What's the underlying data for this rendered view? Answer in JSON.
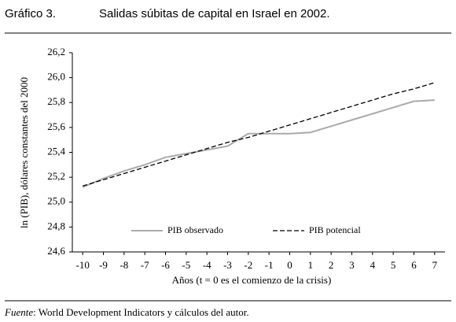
{
  "header": {
    "label": "Gráfico 3.",
    "title": "Salidas súbitas de capital en Israel en 2002."
  },
  "chart_data": {
    "type": "line",
    "x": [
      -10,
      -9,
      -8,
      -7,
      -6,
      -5,
      -4,
      -3,
      -2,
      -1,
      0,
      1,
      2,
      3,
      4,
      5,
      6,
      7
    ],
    "xlim": [
      -10.5,
      7.5
    ],
    "xticks": [
      -10,
      -9,
      -8,
      -7,
      -6,
      -5,
      -4,
      -3,
      -2,
      -1,
      0,
      1,
      2,
      3,
      4,
      5,
      6,
      7
    ],
    "ylim": [
      24.6,
      26.2
    ],
    "yticks": [
      {
        "value": 24.6,
        "label": "24,6"
      },
      {
        "value": 24.8,
        "label": "24,8"
      },
      {
        "value": 25.0,
        "label": "25,0"
      },
      {
        "value": 25.2,
        "label": "25,2"
      },
      {
        "value": 25.4,
        "label": "25,4"
      },
      {
        "value": 25.6,
        "label": "25,6"
      },
      {
        "value": 25.8,
        "label": "25,8"
      },
      {
        "value": 26.0,
        "label": "26,0"
      },
      {
        "value": 26.2,
        "label": "26,2"
      }
    ],
    "x_label": "Años  (t = 0 es el comienzo de la crisis)",
    "y_label": "ln (PIB), dólares constantes del 2000",
    "legend": "bottom",
    "series": [
      {
        "name": "PIB observado",
        "color": "#aaaaaa",
        "dash": false,
        "values": [
          25.12,
          25.19,
          25.25,
          25.3,
          25.36,
          25.39,
          25.42,
          25.45,
          25.55,
          25.55,
          25.55,
          25.56,
          25.61,
          25.66,
          25.71,
          25.76,
          25.81,
          25.82
        ]
      },
      {
        "name": "PIB potencial",
        "color": "#000000",
        "dash": true,
        "values": [
          25.13,
          25.18,
          25.23,
          25.28,
          25.33,
          25.38,
          25.43,
          25.48,
          25.52,
          25.57,
          25.62,
          25.67,
          25.72,
          25.77,
          25.82,
          25.87,
          25.91,
          25.96
        ]
      }
    ]
  },
  "footer": {
    "source_label": "Fuente",
    "source_text": ": World Development Indicators y cálculos del autor."
  }
}
